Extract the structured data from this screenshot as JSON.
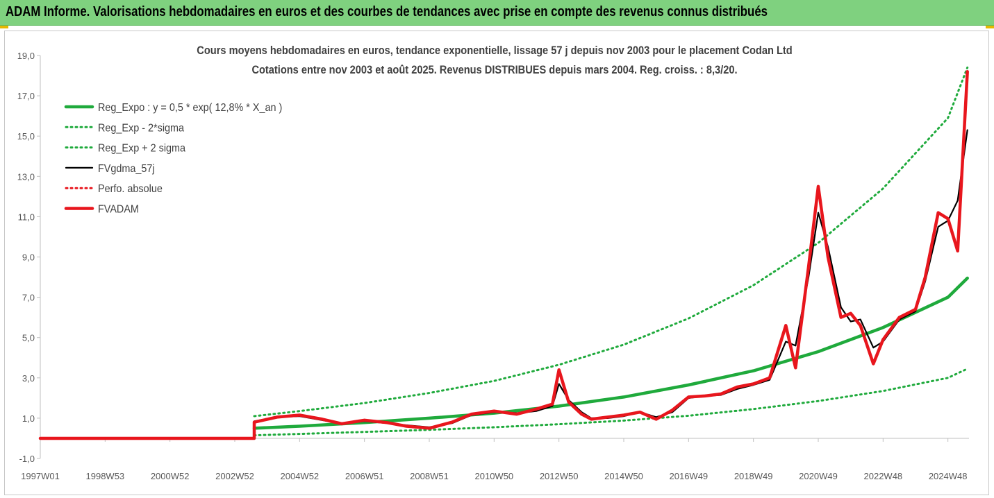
{
  "header": {
    "title": "ADAM Informe. Valorisations hebdomadaires en euros et des courbes de tendances avec prise en compte des revenus connus distribués"
  },
  "chart_data": {
    "type": "line",
    "title": "Cours moyens hebdomadaires en euros, tendance exponentielle, lissage 57 j depuis nov 2003  pour le placement Codan Ltd",
    "subtitle": "Cotations entre nov 2003 et août 2025. Revenus DISTRIBUES depuis mars 2004. Reg. croiss. : 8,3/20.",
    "xlabel": "",
    "ylabel": "",
    "ylim": [
      -1,
      19
    ],
    "yticks": [
      "19,0",
      "17,0",
      "15,0",
      "13,0",
      "11,0",
      "9,0",
      "7,0",
      "5,0",
      "3,0",
      "1,0",
      "-1,0"
    ],
    "xlim": [
      1997.0,
      2025.65
    ],
    "xticks": [
      {
        "label": "1997W01",
        "x": 1997.0
      },
      {
        "label": "1998W53",
        "x": 1999.0
      },
      {
        "label": "2000W52",
        "x": 2001.0
      },
      {
        "label": "2002W52",
        "x": 2003.0
      },
      {
        "label": "2004W52",
        "x": 2005.0
      },
      {
        "label": "2006W51",
        "x": 2007.0
      },
      {
        "label": "2008W51",
        "x": 2009.0
      },
      {
        "label": "2010W50",
        "x": 2011.0
      },
      {
        "label": "2012W50",
        "x": 2013.0
      },
      {
        "label": "2014W50",
        "x": 2015.0
      },
      {
        "label": "2016W49",
        "x": 2017.0
      },
      {
        "label": "2018W49",
        "x": 2019.0
      },
      {
        "label": "2020W49",
        "x": 2021.0
      },
      {
        "label": "2022W48",
        "x": 2023.0
      },
      {
        "label": "2024W48",
        "x": 2025.0
      }
    ],
    "grid": false,
    "legend_position": "top-left",
    "colors": {
      "green": "#1faa3c",
      "black": "#000000",
      "red": "#e8161d",
      "axis": "#bfbfbf",
      "text": "#595959",
      "title_text": "#404040"
    },
    "series": [
      {
        "name": "Reg_Expo : y = 0,5 * exp( 12,8% *  X_an )",
        "style": "solid-thick",
        "color": "#1faa3c",
        "x": [
          2003.6,
          2005.0,
          2007.0,
          2009.0,
          2011.0,
          2013.0,
          2015.0,
          2017.0,
          2019.0,
          2021.0,
          2023.0,
          2025.0,
          2025.6
        ],
        "y": [
          0.5,
          0.6,
          0.78,
          1.0,
          1.25,
          1.6,
          2.05,
          2.65,
          3.35,
          4.3,
          5.5,
          7.0,
          7.95
        ]
      },
      {
        "name": "Reg_Exp - 2*sigma",
        "style": "dotted",
        "color": "#1faa3c",
        "x": [
          2003.6,
          2005.0,
          2007.0,
          2009.0,
          2011.0,
          2013.0,
          2015.0,
          2017.0,
          2019.0,
          2021.0,
          2023.0,
          2025.0,
          2025.6
        ],
        "y": [
          0.15,
          0.22,
          0.32,
          0.42,
          0.55,
          0.7,
          0.88,
          1.12,
          1.45,
          1.85,
          2.35,
          3.0,
          3.45
        ]
      },
      {
        "name": "Reg_Exp + 2 sigma",
        "style": "dotted",
        "color": "#1faa3c",
        "x": [
          2003.6,
          2005.0,
          2007.0,
          2009.0,
          2011.0,
          2013.0,
          2015.0,
          2017.0,
          2019.0,
          2021.0,
          2023.0,
          2025.0,
          2025.6
        ],
        "y": [
          1.1,
          1.35,
          1.75,
          2.25,
          2.85,
          3.65,
          4.65,
          5.95,
          7.6,
          9.7,
          12.4,
          15.9,
          18.4
        ]
      },
      {
        "name": "FVgdma_57j",
        "style": "solid",
        "color": "#000000",
        "x": [
          2003.6,
          2004.3,
          2005.0,
          2005.7,
          2006.3,
          2007.0,
          2007.7,
          2008.3,
          2009.0,
          2009.7,
          2010.3,
          2011.0,
          2011.7,
          2012.3,
          2012.8,
          2013.0,
          2013.3,
          2013.7,
          2014.0,
          2014.5,
          2015.0,
          2015.5,
          2016.0,
          2016.5,
          2017.0,
          2017.5,
          2018.0,
          2018.5,
          2019.0,
          2019.5,
          2020.0,
          2020.3,
          2020.7,
          2021.0,
          2021.3,
          2021.7,
          2022.0,
          2022.3,
          2022.7,
          2023.0,
          2023.5,
          2024.0,
          2024.3,
          2024.7,
          2025.0,
          2025.3,
          2025.6
        ],
        "y": [
          0.85,
          1.05,
          1.1,
          0.9,
          0.72,
          0.85,
          0.75,
          0.65,
          0.55,
          0.75,
          1.15,
          1.3,
          1.25,
          1.35,
          1.6,
          2.7,
          1.9,
          1.3,
          1.0,
          1.0,
          1.1,
          1.3,
          1.05,
          1.3,
          2.0,
          2.1,
          2.15,
          2.45,
          2.65,
          2.9,
          4.8,
          4.6,
          8.0,
          11.2,
          9.5,
          6.5,
          5.8,
          5.9,
          4.5,
          4.8,
          5.9,
          6.3,
          7.8,
          10.5,
          10.8,
          11.8,
          15.3
        ]
      },
      {
        "name": "Perfo. absolue",
        "style": "dotted",
        "color": "#e8161d",
        "x": [
          1997.0,
          2003.6,
          2003.6,
          2004.3,
          2005.0,
          2005.7,
          2006.3,
          2007.0,
          2007.7,
          2008.3,
          2009.0,
          2009.7,
          2010.3,
          2011.0,
          2011.7,
          2012.3,
          2012.8,
          2013.0,
          2013.3,
          2013.7,
          2014.0,
          2014.5,
          2015.0,
          2015.5,
          2016.0,
          2016.5,
          2017.0,
          2017.5,
          2018.0,
          2018.5,
          2019.0,
          2019.5,
          2020.0,
          2020.3,
          2020.7,
          2021.0,
          2021.3,
          2021.7,
          2022.0,
          2022.3,
          2022.7,
          2023.0,
          2023.5,
          2024.0,
          2024.3,
          2024.7,
          2025.0,
          2025.3,
          2025.6
        ],
        "y": [
          0.0,
          0.0,
          0.8,
          1.05,
          1.15,
          0.95,
          0.72,
          0.9,
          0.78,
          0.6,
          0.5,
          0.8,
          1.2,
          1.35,
          1.2,
          1.45,
          1.7,
          3.4,
          1.8,
          1.2,
          0.95,
          1.05,
          1.15,
          1.3,
          0.95,
          1.4,
          2.05,
          2.1,
          2.2,
          2.55,
          2.7,
          3.0,
          5.6,
          3.5,
          8.5,
          12.5,
          9.0,
          6.0,
          6.2,
          5.6,
          3.7,
          4.9,
          6.0,
          6.4,
          8.0,
          11.2,
          10.9,
          9.3,
          18.2
        ]
      },
      {
        "name": "FVADAM",
        "style": "solid-thick",
        "color": "#e8161d",
        "x": [
          1997.0,
          2003.6,
          2003.6,
          2004.3,
          2005.0,
          2005.7,
          2006.3,
          2007.0,
          2007.7,
          2008.3,
          2009.0,
          2009.7,
          2010.3,
          2011.0,
          2011.7,
          2012.3,
          2012.8,
          2013.0,
          2013.3,
          2013.7,
          2014.0,
          2014.5,
          2015.0,
          2015.5,
          2016.0,
          2016.5,
          2017.0,
          2017.5,
          2018.0,
          2018.5,
          2019.0,
          2019.5,
          2020.0,
          2020.3,
          2020.7,
          2021.0,
          2021.3,
          2021.7,
          2022.0,
          2022.3,
          2022.7,
          2023.0,
          2023.5,
          2024.0,
          2024.3,
          2024.7,
          2025.0,
          2025.3,
          2025.6
        ],
        "y": [
          0.0,
          0.0,
          0.8,
          1.05,
          1.15,
          0.95,
          0.72,
          0.9,
          0.78,
          0.6,
          0.5,
          0.8,
          1.2,
          1.35,
          1.2,
          1.45,
          1.7,
          3.4,
          1.8,
          1.2,
          0.95,
          1.05,
          1.15,
          1.3,
          0.95,
          1.4,
          2.05,
          2.1,
          2.2,
          2.55,
          2.7,
          3.0,
          5.6,
          3.5,
          8.5,
          12.5,
          9.0,
          6.0,
          6.2,
          5.6,
          3.7,
          4.9,
          6.0,
          6.4,
          8.0,
          11.2,
          10.9,
          9.3,
          18.2
        ]
      }
    ]
  }
}
